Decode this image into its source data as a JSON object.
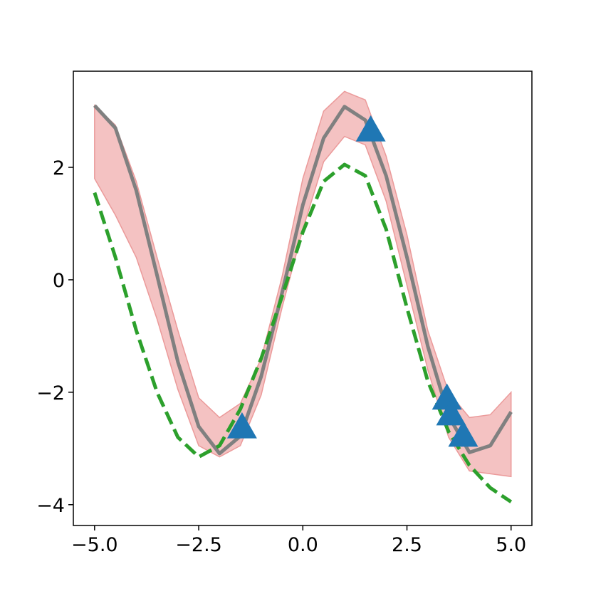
{
  "chart_data": {
    "type": "line",
    "x": [
      -5,
      -4.5,
      -4,
      -3.5,
      -3,
      -2.5,
      -2,
      -1.5,
      -1,
      -0.5,
      0,
      0.5,
      1,
      1.5,
      2,
      2.5,
      3,
      3.5,
      4,
      4.5,
      5
    ],
    "series": [
      {
        "style": "band",
        "color": "#f4c2c2",
        "edge_color": "#eb9a9a",
        "upper": [
          3.1,
          2.75,
          1.75,
          0.4,
          -0.9,
          -2.1,
          -2.45,
          -2.2,
          -1.4,
          0.05,
          1.8,
          3.0,
          3.35,
          3.2,
          2.2,
          0.8,
          -0.9,
          -2.0,
          -2.45,
          -2.4,
          -2.0
        ],
        "lower": [
          1.8,
          1.15,
          0.4,
          -0.7,
          -1.95,
          -2.95,
          -3.15,
          -2.95,
          -2.05,
          -0.5,
          0.9,
          2.1,
          2.55,
          2.4,
          1.4,
          -0.1,
          -1.6,
          -2.8,
          -3.4,
          -3.45,
          -3.5
        ]
      },
      {
        "style": "line",
        "color": "#808080",
        "values": [
          3.1,
          2.7,
          1.59,
          0.08,
          -1.46,
          -2.61,
          -3.09,
          -2.78,
          -1.72,
          -0.24,
          1.33,
          2.52,
          3.08,
          2.84,
          1.85,
          0.4,
          -1.18,
          -2.42,
          -3.07,
          -2.95,
          -2.35
        ]
      },
      {
        "style": "dashed",
        "color": "#2ca02c",
        "values": [
          1.55,
          0.4,
          -0.9,
          -2.0,
          -2.8,
          -3.15,
          -2.95,
          -2.3,
          -1.4,
          -0.3,
          0.85,
          1.75,
          2.05,
          1.85,
          0.9,
          -0.5,
          -1.8,
          -2.7,
          -3.3,
          -3.7,
          -3.95
        ]
      },
      {
        "style": "scatter",
        "color": "#1f77b4",
        "x": [
          -1.46,
          1.63,
          3.46,
          3.56,
          3.85
        ],
        "values": [
          -2.62,
          2.66,
          -2.11,
          -2.39,
          -2.77
        ]
      }
    ],
    "xlim": [
      -5.51,
      5.5
    ],
    "ylim": [
      -4.37,
      3.71
    ],
    "xticks": [
      {
        "value": -5,
        "label": "−5.0"
      },
      {
        "value": -2.5,
        "label": "−2.5"
      },
      {
        "value": 0,
        "label": "0.0"
      },
      2.5,
      {
        "value": 5,
        "label": "5.0"
      }
    ],
    "yticks": [
      {
        "value": -4,
        "label": "−4"
      },
      {
        "value": -2,
        "label": "−2"
      },
      0,
      2
    ]
  }
}
